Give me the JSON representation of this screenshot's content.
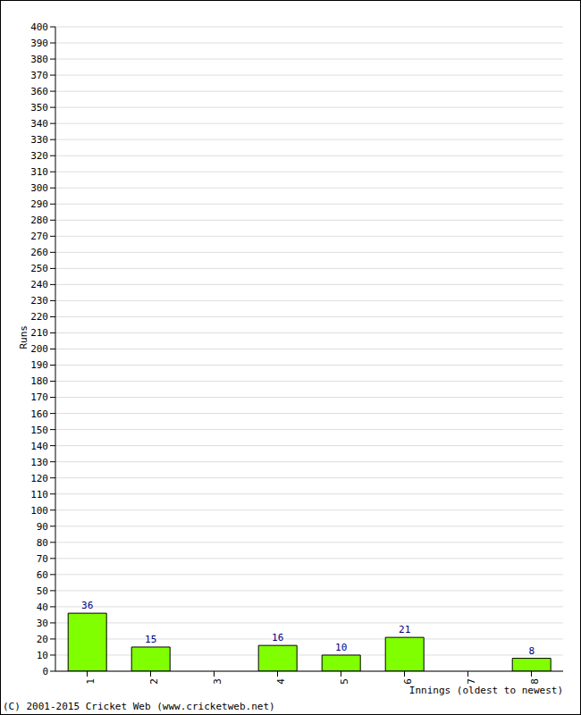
{
  "chart_data": {
    "type": "bar",
    "categories": [
      "1",
      "2",
      "3",
      "4",
      "5",
      "6",
      "7",
      "8"
    ],
    "values": [
      36,
      15,
      0,
      16,
      10,
      21,
      0,
      8
    ],
    "color": "#80ff00",
    "ylim": [
      0,
      400
    ],
    "yticks": [
      0,
      10,
      20,
      30,
      40,
      50,
      60,
      70,
      80,
      90,
      100,
      110,
      120,
      130,
      140,
      150,
      160,
      170,
      180,
      190,
      200,
      210,
      220,
      230,
      240,
      250,
      260,
      270,
      280,
      290,
      300,
      310,
      320,
      330,
      340,
      350,
      360,
      370,
      380,
      390,
      400
    ],
    "grid": true,
    "data_labels": true,
    "x_label": "Innings (oldest to newest)",
    "y_label": "Runs",
    "footer": "(C) 2001-2015 Cricket Web (www.cricketweb.net)"
  }
}
